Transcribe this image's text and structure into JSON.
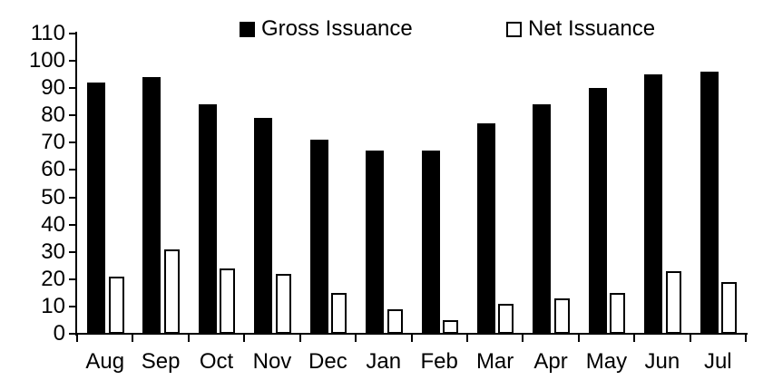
{
  "chart_data": {
    "type": "bar",
    "categories": [
      "Aug",
      "Sep",
      "Oct",
      "Nov",
      "Dec",
      "Jan",
      "Feb",
      "Mar",
      "Apr",
      "May",
      "Jun",
      "Jul"
    ],
    "series": [
      {
        "name": "Gross Issuance",
        "values": [
          92,
          94,
          84,
          79,
          71,
          67,
          67,
          77,
          84,
          90,
          95,
          96
        ],
        "fill": "#000000",
        "border": "#000000"
      },
      {
        "name": "Net Issuance",
        "values": [
          21,
          31,
          24,
          22,
          15,
          9,
          5,
          11,
          13,
          15,
          23,
          19
        ],
        "fill": "#ffffff",
        "border": "#000000"
      }
    ],
    "ylim": [
      0,
      110
    ],
    "ytick_step": 10,
    "yticks": [
      "0",
      "10",
      "20",
      "30",
      "40",
      "50",
      "60",
      "70",
      "80",
      "90",
      "100",
      "110"
    ],
    "grid": false,
    "legend_position": "top",
    "axis_color": "#000000",
    "text_color": "#000000",
    "background": "#ffffff"
  }
}
